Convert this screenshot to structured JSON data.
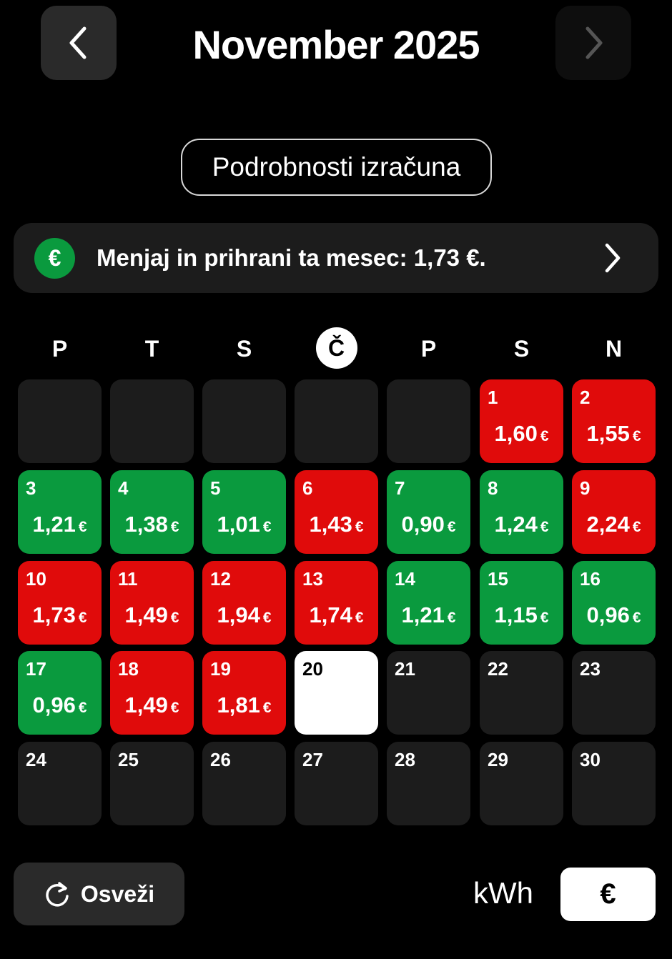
{
  "header": {
    "title": "November 2025",
    "prev_icon": "chevron-left-icon",
    "next_icon": "chevron-right-icon"
  },
  "details_button": "Podrobnosti izračuna",
  "promo": {
    "icon": "€",
    "text": "Menjaj in prihrani ta mesec: 1,73 €."
  },
  "weekdays": [
    "P",
    "T",
    "S",
    "Č",
    "P",
    "S",
    "N"
  ],
  "today_weekday_index": 3,
  "currency_suffix": "€",
  "colors": {
    "red": "#e00b0b",
    "green": "#0a9a3e",
    "empty": "#1c1c1c",
    "today": "#ffffff"
  },
  "leading_blank_days": 5,
  "days": [
    {
      "day": "1",
      "value": "1,60",
      "status": "red"
    },
    {
      "day": "2",
      "value": "1,55",
      "status": "red"
    },
    {
      "day": "3",
      "value": "1,21",
      "status": "green"
    },
    {
      "day": "4",
      "value": "1,38",
      "status": "green"
    },
    {
      "day": "5",
      "value": "1,01",
      "status": "green"
    },
    {
      "day": "6",
      "value": "1,43",
      "status": "red"
    },
    {
      "day": "7",
      "value": "0,90",
      "status": "green"
    },
    {
      "day": "8",
      "value": "1,24",
      "status": "green"
    },
    {
      "day": "9",
      "value": "2,24",
      "status": "red"
    },
    {
      "day": "10",
      "value": "1,73",
      "status": "red"
    },
    {
      "day": "11",
      "value": "1,49",
      "status": "red"
    },
    {
      "day": "12",
      "value": "1,94",
      "status": "red"
    },
    {
      "day": "13",
      "value": "1,74",
      "status": "red"
    },
    {
      "day": "14",
      "value": "1,21",
      "status": "green"
    },
    {
      "day": "15",
      "value": "1,15",
      "status": "green"
    },
    {
      "day": "16",
      "value": "0,96",
      "status": "green"
    },
    {
      "day": "17",
      "value": "0,96",
      "status": "green"
    },
    {
      "day": "18",
      "value": "1,49",
      "status": "red"
    },
    {
      "day": "19",
      "value": "1,81",
      "status": "red"
    },
    {
      "day": "20",
      "value": null,
      "status": "today"
    },
    {
      "day": "21",
      "value": null,
      "status": "empty"
    },
    {
      "day": "22",
      "value": null,
      "status": "empty"
    },
    {
      "day": "23",
      "value": null,
      "status": "empty"
    },
    {
      "day": "24",
      "value": null,
      "status": "empty"
    },
    {
      "day": "25",
      "value": null,
      "status": "empty"
    },
    {
      "day": "26",
      "value": null,
      "status": "empty"
    },
    {
      "day": "27",
      "value": null,
      "status": "empty"
    },
    {
      "day": "28",
      "value": null,
      "status": "empty"
    },
    {
      "day": "29",
      "value": null,
      "status": "empty"
    },
    {
      "day": "30",
      "value": null,
      "status": "empty"
    }
  ],
  "footer": {
    "refresh_label": "Osveži",
    "unit_kwh": "kWh",
    "unit_eur": "€",
    "selected_unit": "€"
  }
}
